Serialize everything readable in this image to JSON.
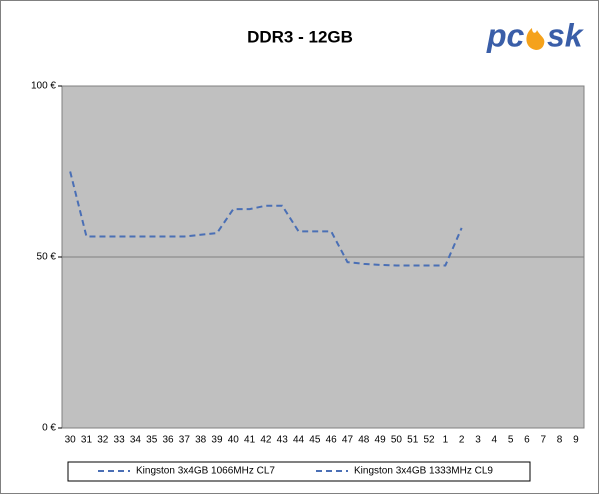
{
  "chart_data": {
    "type": "line",
    "title": "DDR3 - 12GB",
    "logo": {
      "left": "pc",
      "right": "sk"
    },
    "categories": [
      "30",
      "31",
      "32",
      "33",
      "34",
      "35",
      "36",
      "37",
      "38",
      "39",
      "40",
      "41",
      "42",
      "43",
      "44",
      "45",
      "46",
      "47",
      "48",
      "49",
      "50",
      "51",
      "52",
      "1",
      "2",
      "3",
      "4",
      "5",
      "6",
      "7",
      "8",
      "9"
    ],
    "series": [
      {
        "name": "Kingston 3x4GB 1066MHz CL7",
        "color": "#4a6fb5",
        "values": [
          75,
          56,
          56,
          56,
          56,
          56,
          56,
          56,
          56.5,
          57,
          64,
          64,
          65,
          65,
          57.5,
          57.5,
          57.5,
          48.5,
          48,
          47.7,
          47.5,
          47.5,
          47.5,
          47.5,
          58.5,
          null,
          null,
          null,
          null,
          null,
          null,
          null
        ]
      },
      {
        "name": "Kingston 3x4GB 1333MHz CL9",
        "color": "#4a6fb5",
        "values": [
          null,
          null,
          null,
          null,
          null,
          null,
          null,
          null,
          null,
          null,
          null,
          null,
          null,
          null,
          null,
          null,
          null,
          null,
          null,
          null,
          null,
          null,
          null,
          null,
          null,
          null,
          null,
          null,
          null,
          null,
          null,
          null
        ]
      }
    ],
    "ylim": [
      0,
      100
    ],
    "yticks": [
      {
        "value": 0,
        "label": "0 €"
      },
      {
        "value": 50,
        "label": "50 €"
      },
      {
        "value": 100,
        "label": "100 €"
      }
    ],
    "grid": true
  }
}
